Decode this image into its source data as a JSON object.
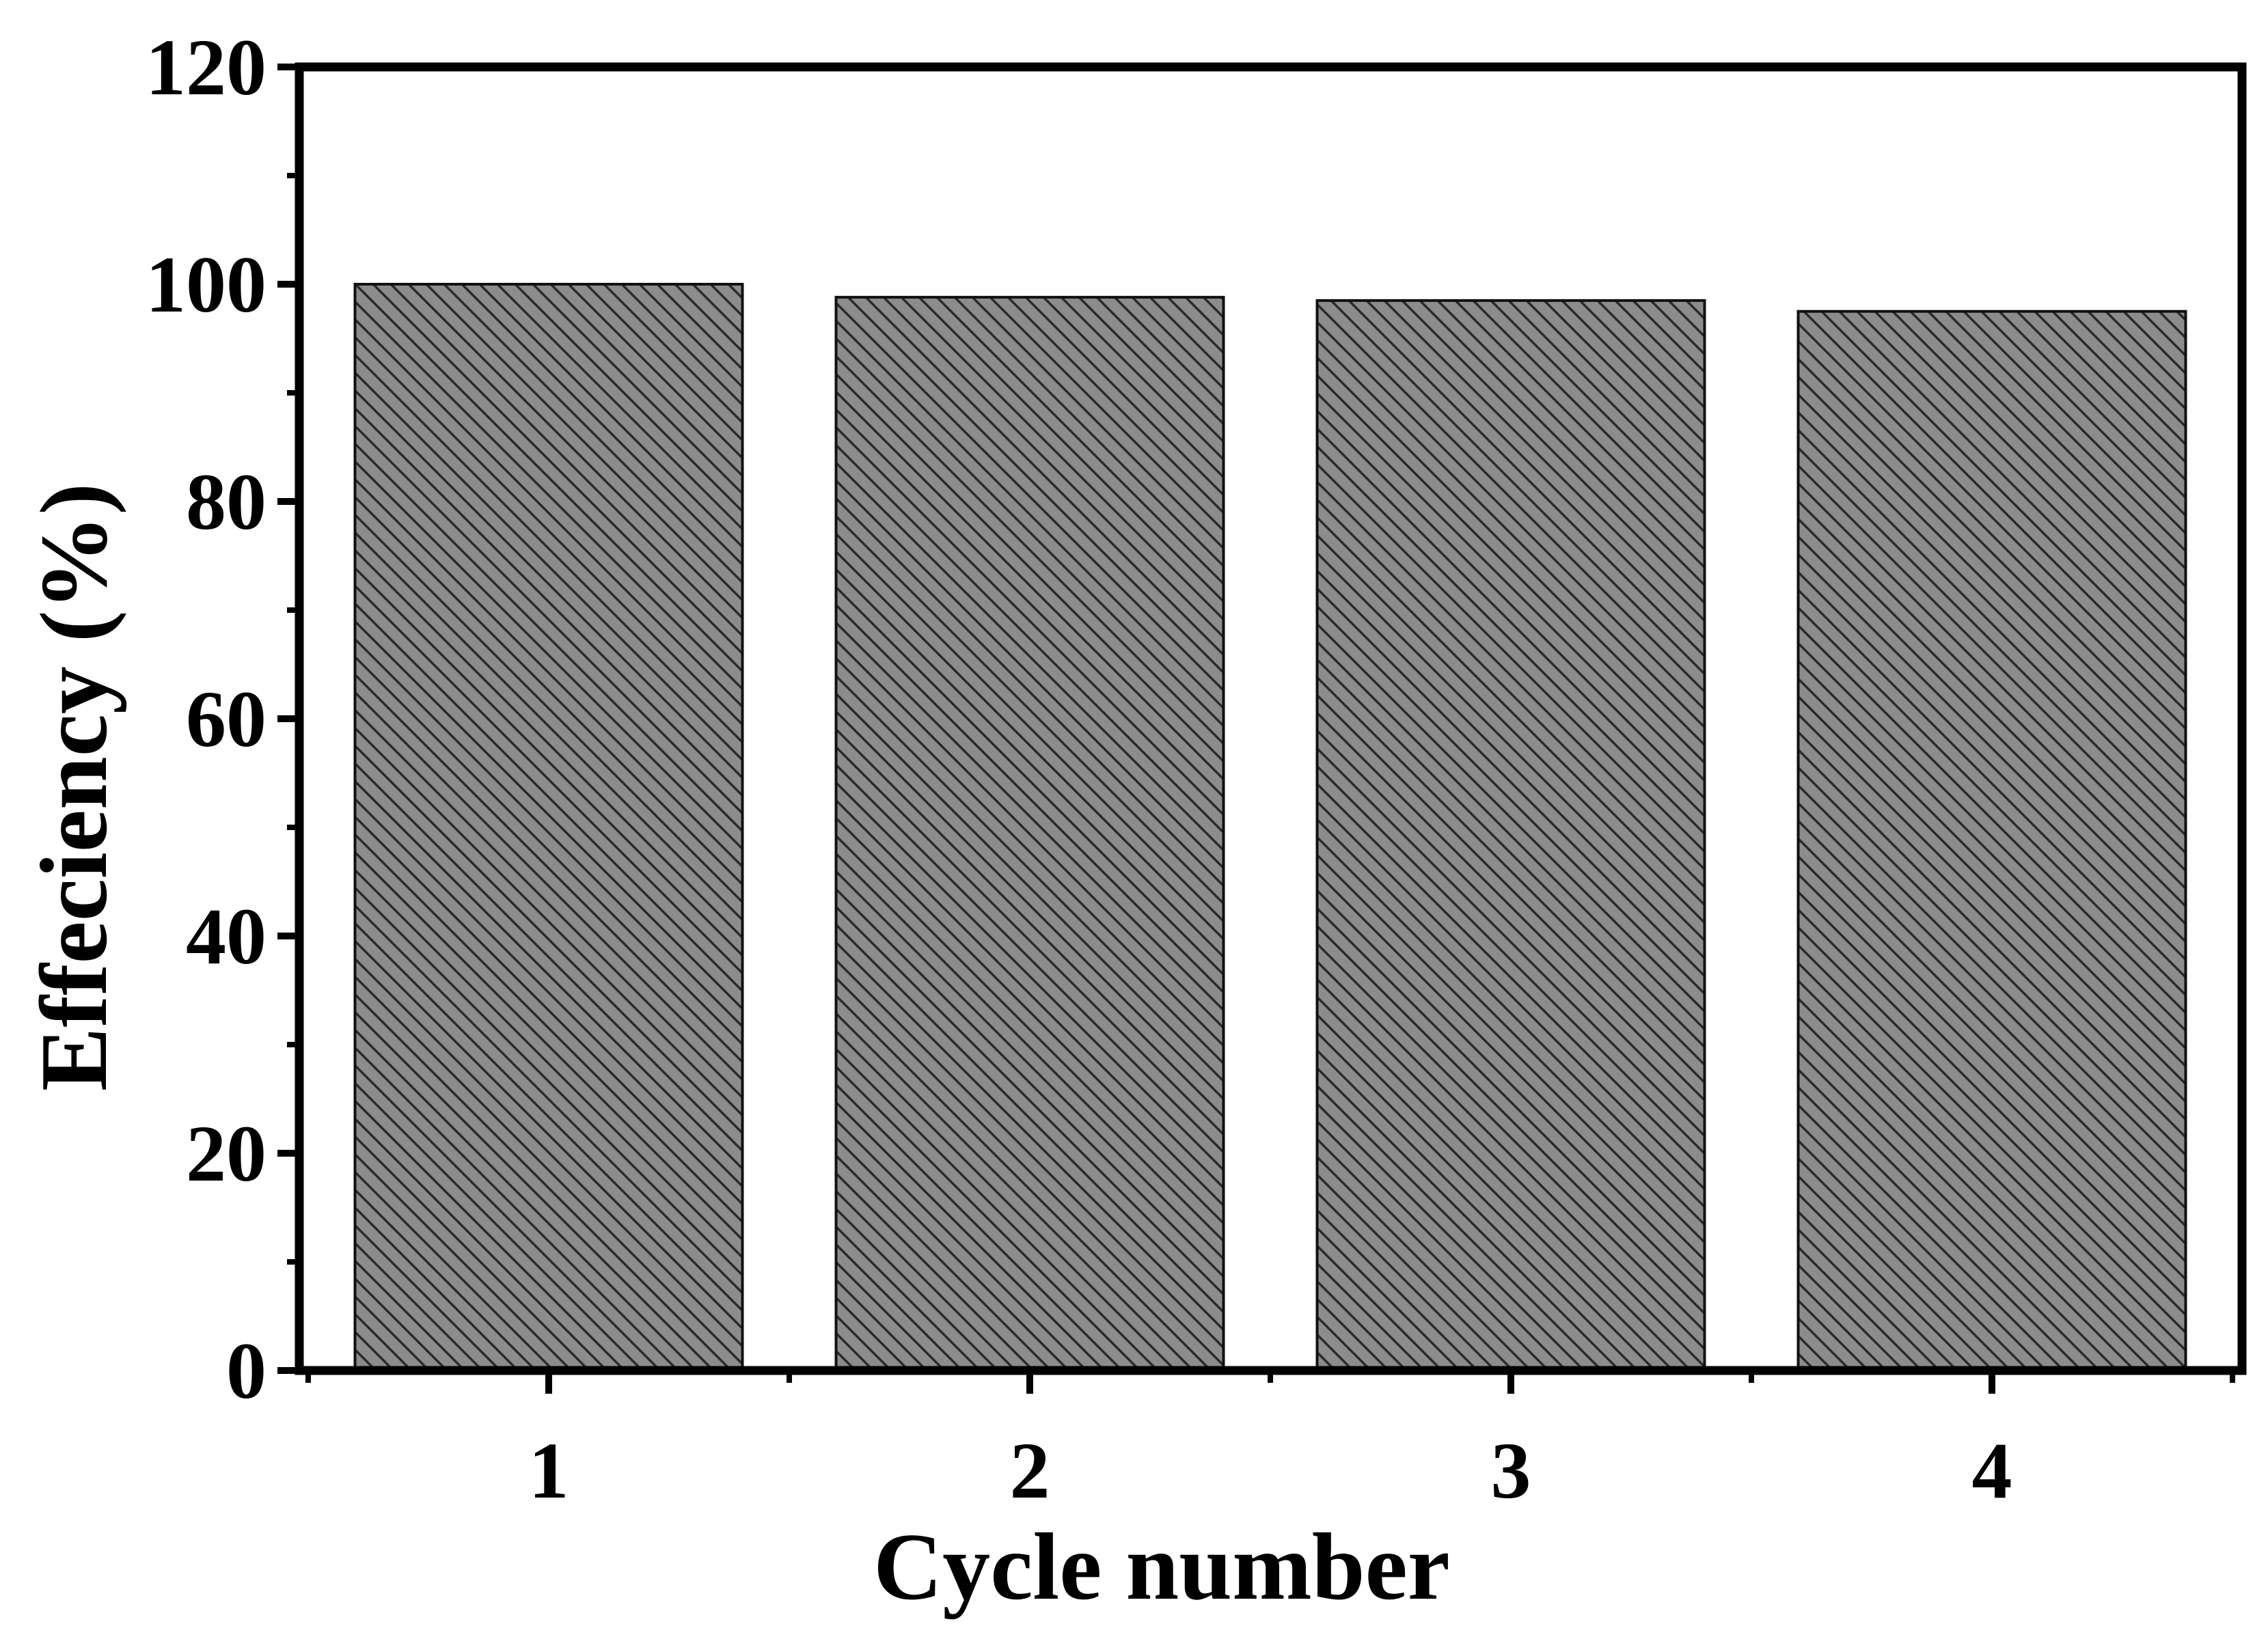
{
  "chart_data": {
    "type": "bar",
    "categories": [
      "1",
      "2",
      "3",
      "4"
    ],
    "values": [
      100.0,
      98.8,
      98.5,
      97.5
    ],
    "title": "",
    "xlabel": "Cycle number",
    "ylabel": "Effeciency (%)",
    "ylim": [
      0,
      120
    ],
    "yticks": [
      0,
      20,
      40,
      60,
      80,
      100,
      120
    ],
    "grid": false,
    "legend": "none",
    "colors": {
      "bar_fill": "#8c8c8c",
      "bar_hatch": "#2a2a2a",
      "axis": "#000000"
    },
    "bar_pattern": "diagonal-hatch"
  }
}
